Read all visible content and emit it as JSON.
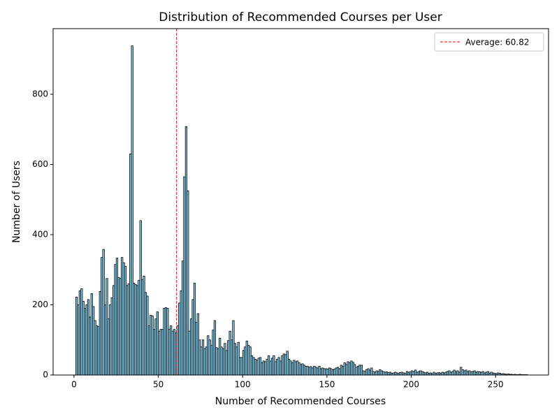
{
  "chart_data": {
    "type": "histogram",
    "title": "Distribution of Recommended Courses per User",
    "x_label": "Number of Recommended Courses",
    "y_label": "Number of Users",
    "color": "skyblue",
    "edgecolor": "black",
    "bins": [
      1,
      2,
      3,
      4,
      5,
      6,
      7,
      8,
      9,
      10,
      11,
      12,
      13,
      14,
      15,
      16,
      17,
      18,
      19,
      20,
      21,
      22,
      23,
      24,
      25,
      26,
      27,
      28,
      29,
      30,
      31,
      32,
      33,
      34,
      35,
      36,
      37,
      38,
      39,
      40,
      41,
      42,
      43,
      44,
      45,
      46,
      47,
      48,
      49,
      50,
      51,
      52,
      53,
      54,
      55,
      56,
      57,
      58,
      59,
      60,
      61,
      62,
      63,
      64,
      65,
      66,
      67,
      68,
      69,
      70,
      71,
      72,
      73,
      74,
      75,
      76,
      77,
      78,
      79,
      80,
      81,
      82,
      83,
      84,
      85,
      86,
      87,
      88,
      89,
      90,
      91,
      92,
      93,
      94,
      95,
      96,
      97,
      98,
      99,
      100,
      101,
      102,
      103,
      104,
      105,
      106,
      107,
      108,
      109,
      110,
      111,
      112,
      113,
      114,
      115,
      116,
      117,
      118,
      119,
      120,
      121,
      122,
      123,
      124,
      125,
      126,
      127,
      128,
      129,
      130,
      131,
      132,
      133,
      134,
      135,
      136,
      137,
      138,
      139,
      140,
      141,
      142,
      143,
      144,
      145,
      146,
      147,
      148,
      149,
      150,
      151,
      152,
      153,
      154,
      155,
      156,
      157,
      158,
      159,
      160,
      161,
      162,
      163,
      164,
      165,
      166,
      167,
      168,
      169,
      170,
      171,
      172,
      173,
      174,
      175,
      176,
      177,
      178,
      179,
      180,
      181,
      182,
      183,
      184,
      185,
      186,
      187,
      188,
      189,
      190,
      191,
      192,
      193,
      194,
      195,
      196,
      197,
      198,
      199,
      200,
      201,
      202,
      203,
      204,
      205,
      206,
      207,
      208,
      209,
      210,
      211,
      212,
      213,
      214,
      215,
      216,
      217,
      218,
      219,
      220,
      221,
      222,
      223,
      224,
      225,
      226,
      227,
      228,
      229,
      230,
      231,
      232,
      233,
      234,
      235,
      236,
      237,
      238,
      239,
      240,
      241,
      242,
      243,
      244,
      245,
      246,
      247,
      248,
      249,
      250,
      251,
      252,
      253,
      254,
      255,
      256,
      257,
      258,
      259,
      260,
      261,
      262,
      263,
      264,
      265,
      266,
      267,
      268,
      269
    ],
    "values": [
      222,
      200,
      240,
      246,
      210,
      190,
      200,
      215,
      165,
      232,
      195,
      155,
      140,
      138,
      238,
      335,
      358,
      200,
      275,
      160,
      200,
      220,
      255,
      315,
      333,
      278,
      275,
      335,
      320,
      310,
      255,
      260,
      630,
      938,
      262,
      258,
      255,
      270,
      440,
      272,
      282,
      235,
      225,
      140,
      170,
      168,
      130,
      160,
      180,
      125,
      130,
      130,
      190,
      192,
      190,
      130,
      140,
      125,
      130,
      120,
      140,
      205,
      240,
      325,
      565,
      708,
      525,
      125,
      160,
      215,
      262,
      150,
      175,
      100,
      80,
      100,
      75,
      80,
      112,
      100,
      85,
      128,
      155,
      78,
      75,
      105,
      80,
      75,
      90,
      70,
      98,
      125,
      100,
      155,
      90,
      80,
      93,
      50,
      50,
      70,
      80,
      97,
      85,
      80,
      55,
      50,
      45,
      42,
      48,
      50,
      35,
      40,
      38,
      45,
      55,
      40,
      48,
      55,
      38,
      45,
      50,
      40,
      55,
      60,
      58,
      68,
      45,
      40,
      35,
      42,
      38,
      40,
      35,
      30,
      32,
      28,
      25,
      25,
      22,
      24,
      20,
      25,
      22,
      20,
      25,
      18,
      20,
      18,
      18,
      17,
      20,
      18,
      15,
      17,
      20,
      22,
      18,
      28,
      25,
      35,
      30,
      38,
      35,
      40,
      36,
      30,
      22,
      25,
      28,
      28,
      12,
      10,
      15,
      18,
      14,
      20,
      10,
      8,
      12,
      10,
      15,
      12,
      10,
      8,
      9,
      7,
      8,
      5,
      6,
      8,
      6,
      5,
      7,
      8,
      6,
      5,
      10,
      8,
      9,
      12,
      10,
      14,
      8,
      10,
      12,
      10,
      8,
      6,
      8,
      5,
      6,
      4,
      8,
      5,
      6,
      7,
      5,
      8,
      6,
      8,
      10,
      12,
      8,
      10,
      14,
      9,
      12,
      8,
      22,
      15,
      12,
      14,
      10,
      12,
      9,
      10,
      12,
      8,
      10,
      9,
      8,
      10,
      6,
      8,
      10,
      5,
      8,
      6,
      5,
      4,
      6,
      5,
      3,
      4,
      3,
      2,
      3,
      2,
      2,
      1,
      2,
      1,
      1,
      2,
      1,
      1,
      1,
      1
    ],
    "average_line": {
      "value": 60.82,
      "label": "Average: 60.82",
      "color": "red"
    },
    "legend": "upper right",
    "xlim": [
      -12.4,
      281.4
    ],
    "ylim": [
      0,
      987
    ],
    "xticks": [
      0,
      50,
      100,
      150,
      200,
      250
    ],
    "yticks": [
      0,
      200,
      400,
      600,
      800
    ]
  }
}
